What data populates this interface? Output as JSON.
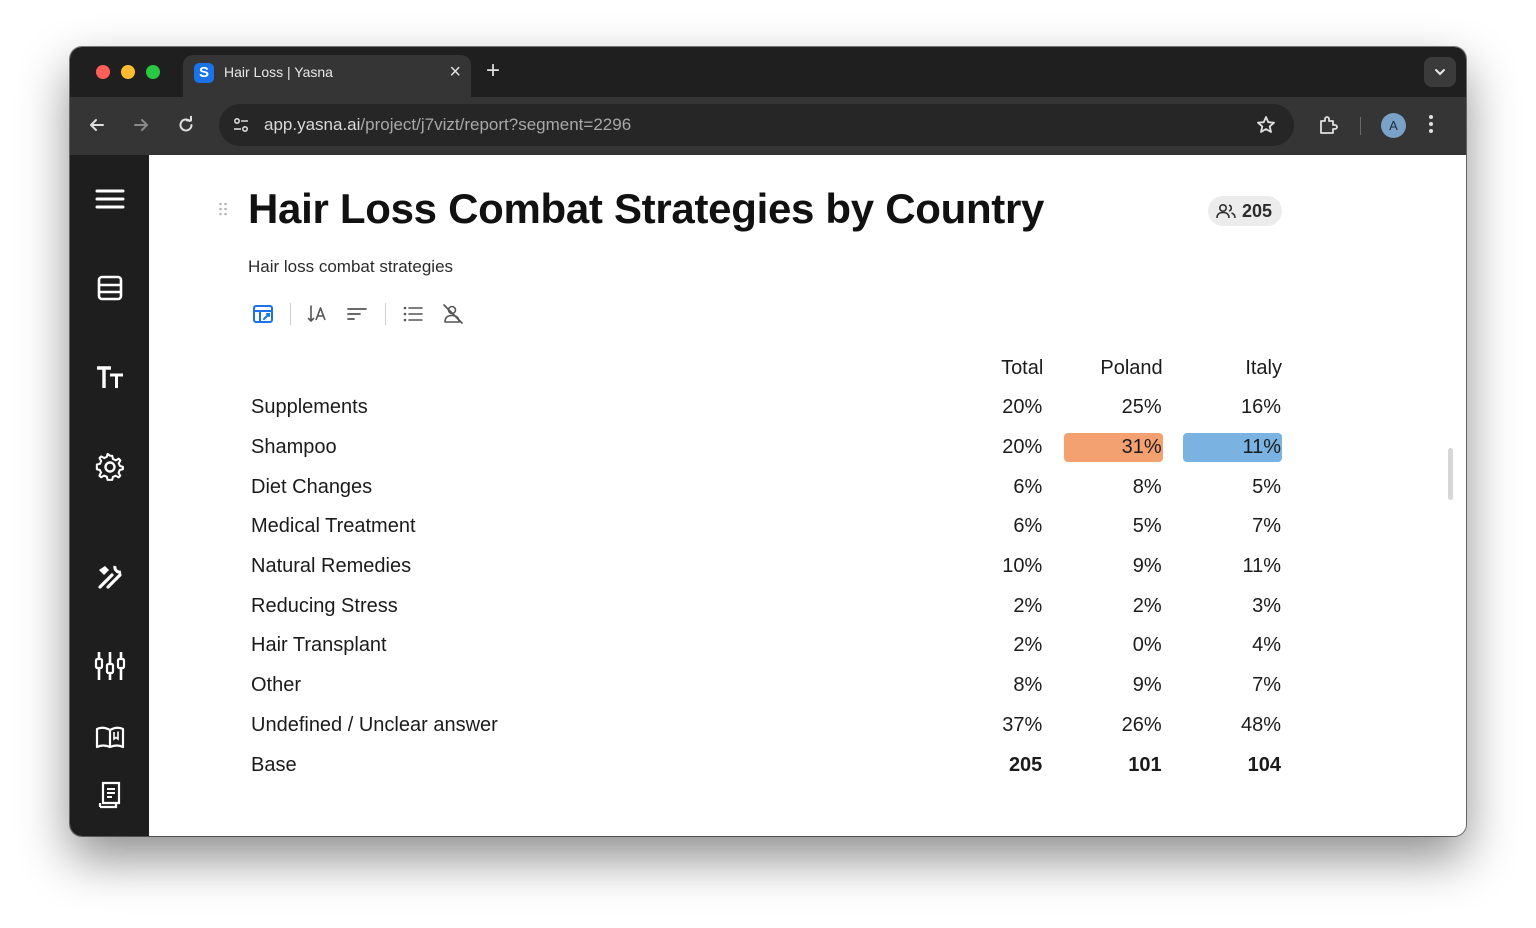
{
  "browser": {
    "tab_title": "Hair Loss | Yasna",
    "favicon_letter": "S",
    "url_host": "app.yasna.ai",
    "url_path": "/project/j7vizt/report?segment=2296",
    "profile_initial": "A"
  },
  "sidebar": {
    "items": [
      {
        "icon": "hamburger-menu-icon"
      },
      {
        "icon": "table-icon"
      },
      {
        "icon": "text-size-icon"
      },
      {
        "icon": "gear-icon"
      },
      {
        "icon": "tools-icon"
      },
      {
        "icon": "sliders-icon"
      },
      {
        "icon": "book-icon"
      },
      {
        "icon": "document-icon"
      }
    ]
  },
  "report": {
    "title": "Hair Loss Combat Strategies by Country",
    "base_count": "205",
    "subtitle": "Hair loss combat strategies",
    "toolbar_icons": [
      "table-settings-icon",
      "sort-alpha-icon",
      "sort-lines-icon",
      "list-icon",
      "hide-icon"
    ]
  },
  "table": {
    "columns": [
      "Total",
      "Poland",
      "Italy"
    ],
    "rows": [
      {
        "label": "Supplements",
        "values": [
          "20%",
          "25%",
          "16%"
        ]
      },
      {
        "label": "Shampoo",
        "values": [
          "20%",
          "31%",
          "11%"
        ]
      },
      {
        "label": "Diet Changes",
        "values": [
          "6%",
          "8%",
          "5%"
        ]
      },
      {
        "label": "Medical Treatment",
        "values": [
          "6%",
          "5%",
          "7%"
        ]
      },
      {
        "label": "Natural Remedies",
        "values": [
          "10%",
          "9%",
          "11%"
        ]
      },
      {
        "label": "Reducing Stress",
        "values": [
          "2%",
          "2%",
          "3%"
        ]
      },
      {
        "label": "Hair Transplant",
        "values": [
          "2%",
          "0%",
          "4%"
        ]
      },
      {
        "label": "Other",
        "values": [
          "8%",
          "9%",
          "7%"
        ]
      },
      {
        "label": "Undefined / Unclear answer",
        "values": [
          "37%",
          "26%",
          "48%"
        ]
      }
    ],
    "base_row": {
      "label": "Base",
      "values": [
        "205",
        "101",
        "104"
      ]
    },
    "highlights": [
      {
        "row": 1,
        "col": 1,
        "color": "#f4a172"
      },
      {
        "row": 1,
        "col": 2,
        "color": "#7ab3e2"
      }
    ]
  }
}
